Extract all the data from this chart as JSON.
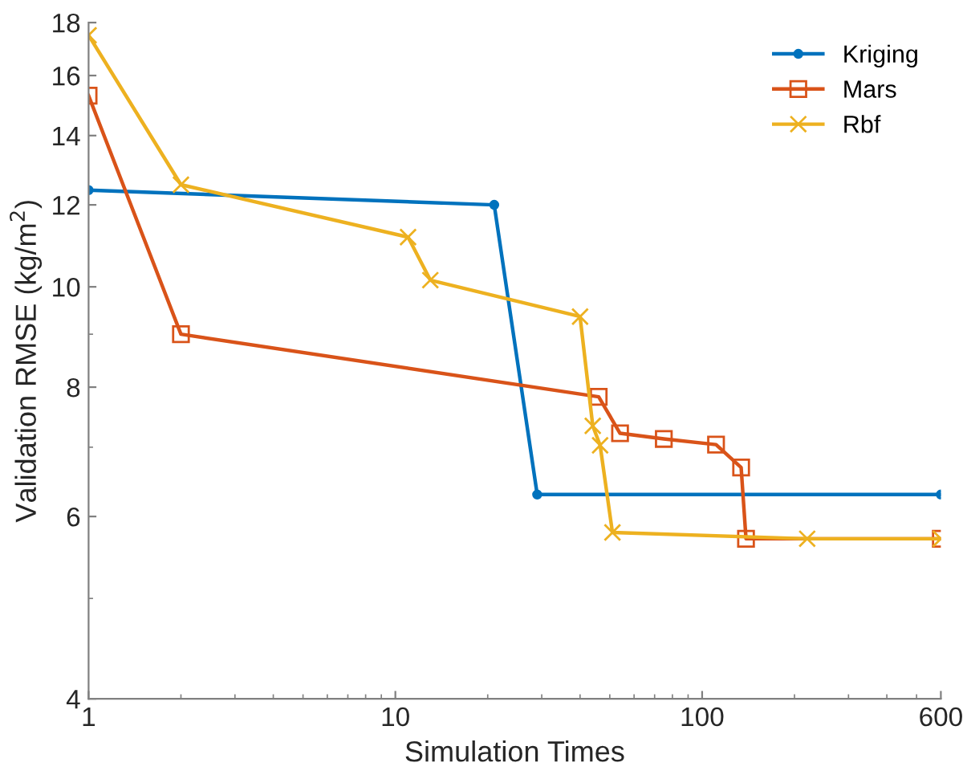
{
  "chart_data": {
    "type": "line",
    "xlabel": "Simulation Times",
    "ylabel": "Validation RMSE (kg/m$^{2}$)",
    "log": "xy",
    "grid": false,
    "legend": "top right",
    "xlim": [
      1,
      600
    ],
    "xticks": [
      1,
      10,
      100,
      600
    ],
    "ylim": [
      4,
      18
    ],
    "yticks": [
      4,
      6,
      8,
      10,
      12,
      14,
      16,
      18
    ],
    "series": [
      {
        "name": "Kriging",
        "color": "#0072bd",
        "marker": "circle",
        "x": [
          1,
          21,
          29,
          600
        ],
        "values": [
          12.4,
          12.0,
          6.3,
          6.3
        ]
      },
      {
        "name": "Mars",
        "color": "#d95319",
        "marker": "square",
        "x": [
          1,
          2,
          46,
          54,
          75,
          111,
          134,
          139,
          600
        ],
        "values": [
          15.3,
          9.0,
          7.83,
          7.22,
          7.13,
          7.04,
          6.69,
          5.71,
          5.71
        ]
      },
      {
        "name": "Rbf",
        "color": "#edb120",
        "marker": "cross",
        "x": [
          1,
          2,
          11,
          13,
          40,
          44,
          46.5,
          51,
          220,
          600
        ],
        "values": [
          17.5,
          12.55,
          11.17,
          10.15,
          9.36,
          7.34,
          7.03,
          5.79,
          5.71,
          5.71
        ]
      }
    ]
  }
}
